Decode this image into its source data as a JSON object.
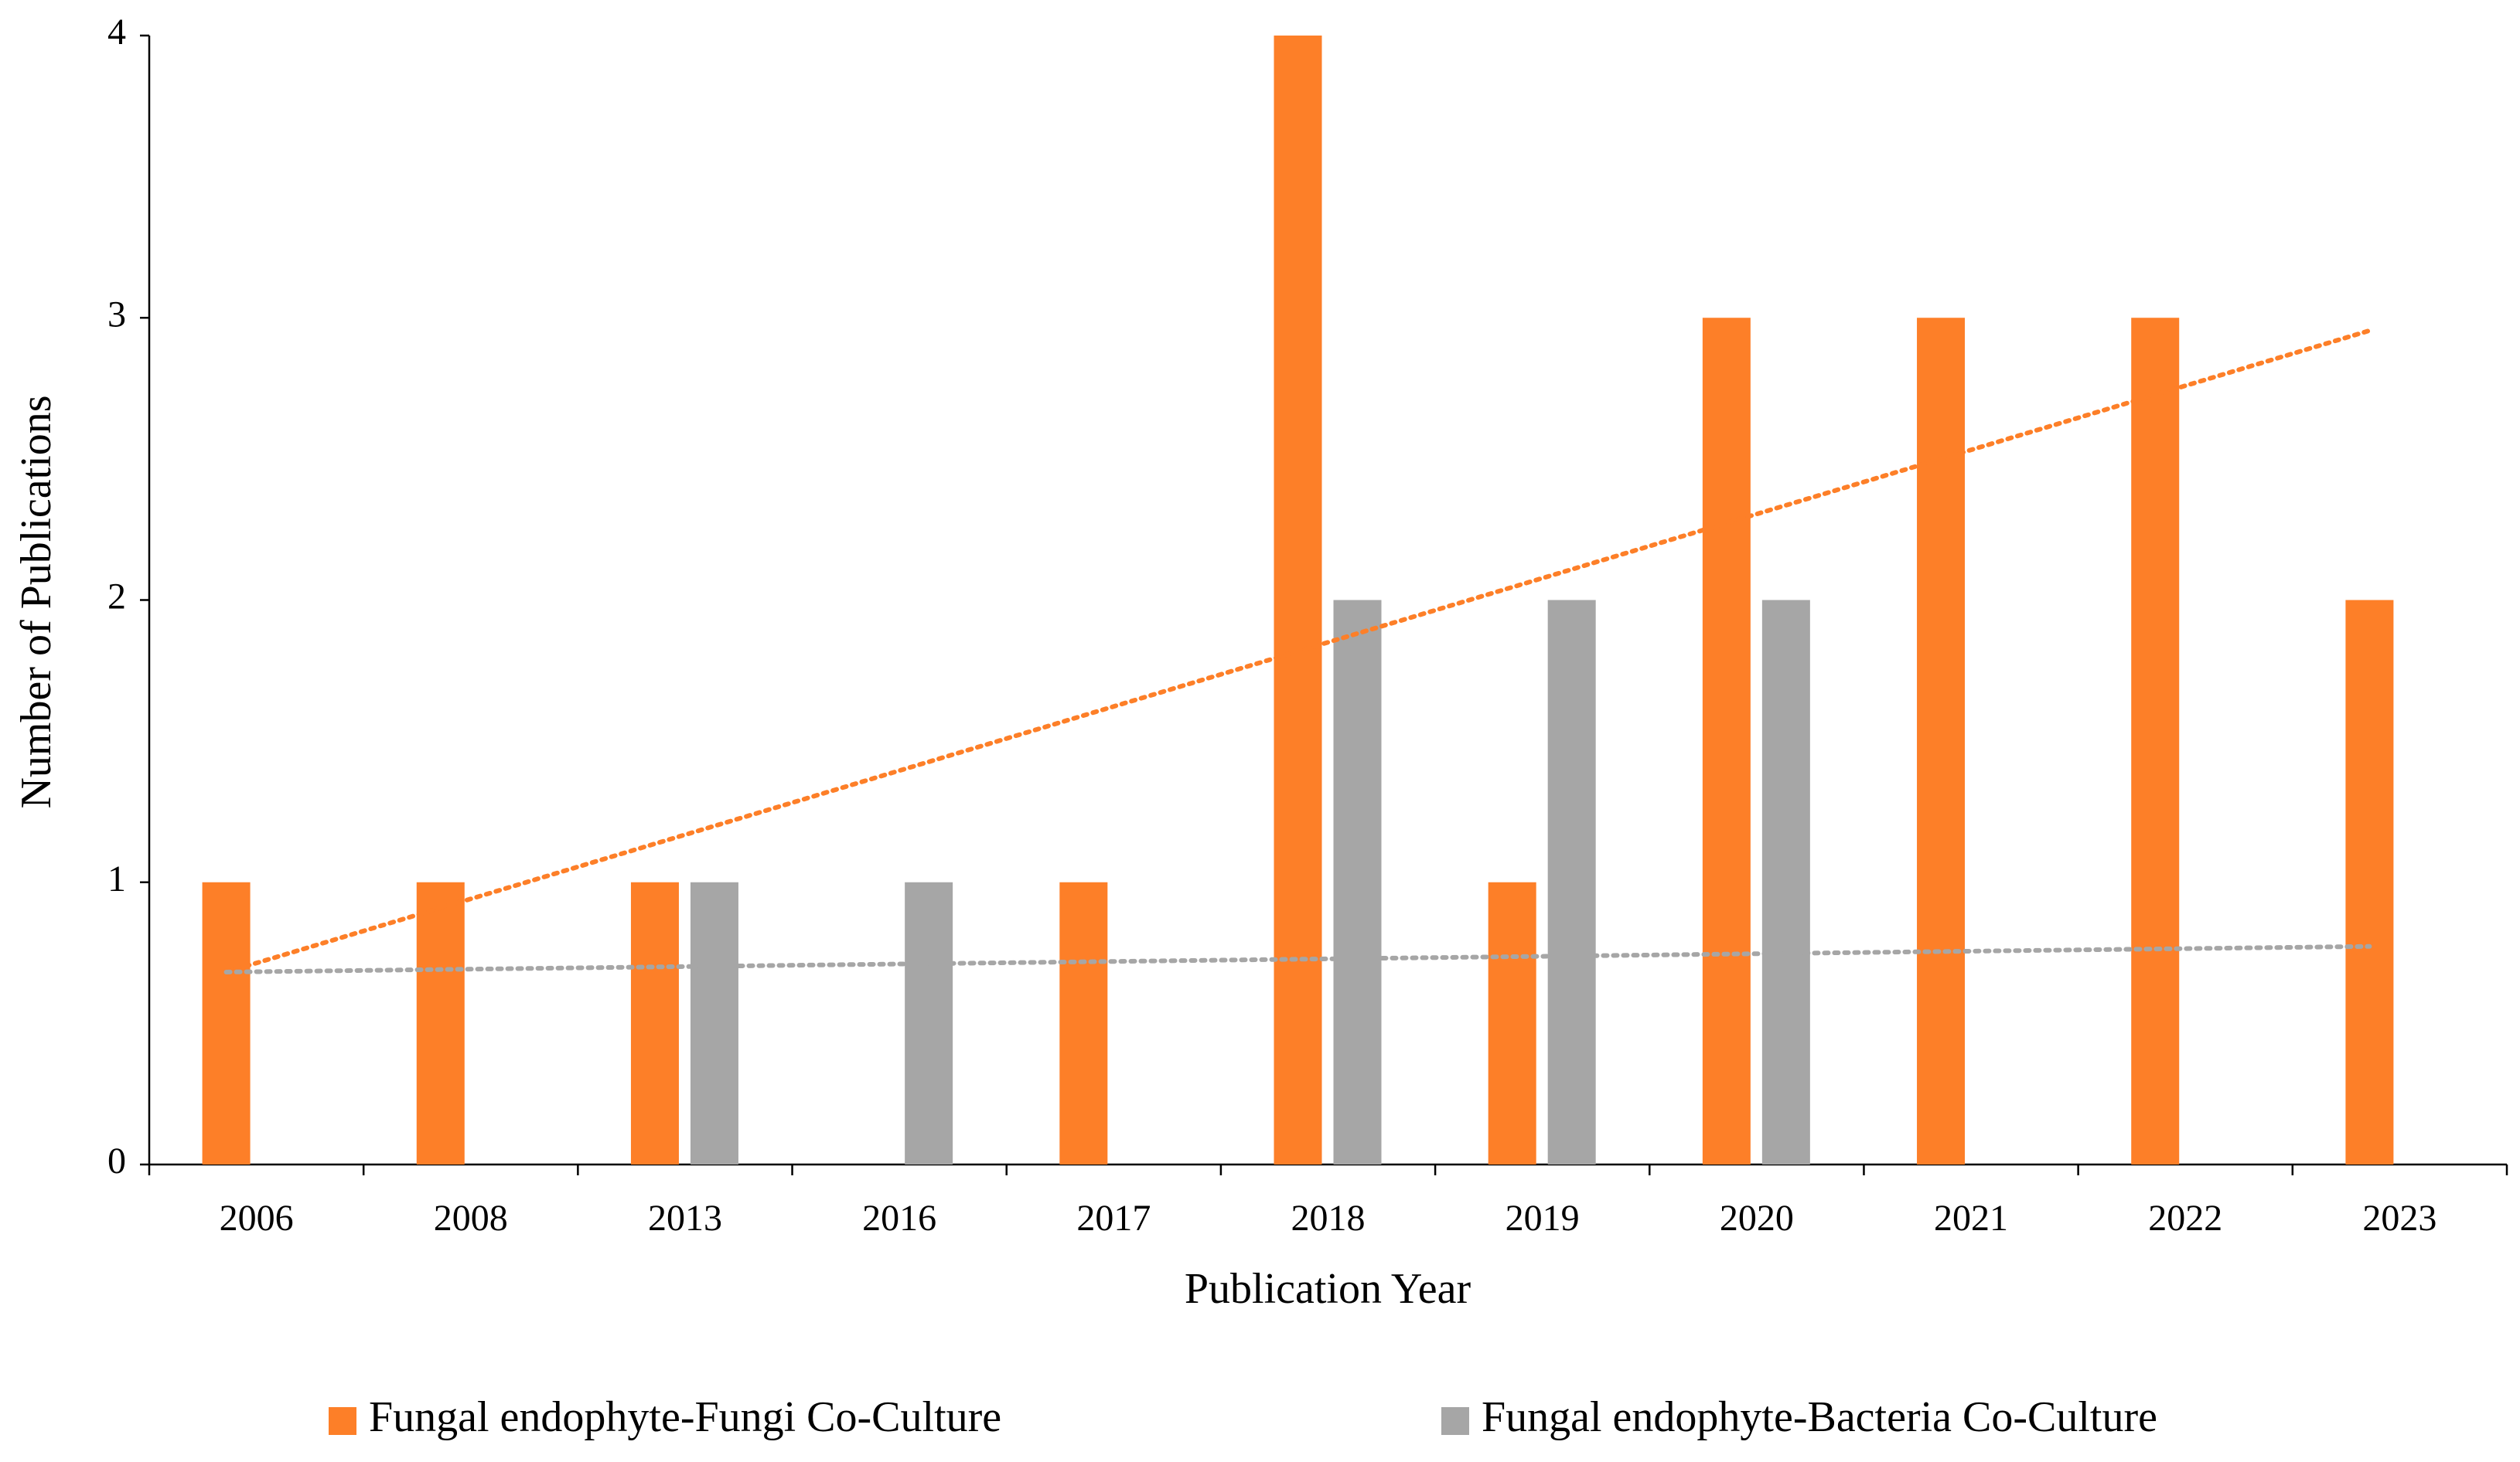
{
  "chart_data": {
    "type": "bar",
    "x_label": "Publication Year",
    "y_label": "Number of Publications",
    "categories": [
      "2006",
      "2008",
      "2013",
      "2016",
      "2017",
      "2018",
      "2019",
      "2020",
      "2021",
      "2022",
      "2023"
    ],
    "series": [
      {
        "name": "Fungal endophyte-Fungi Co-Culture",
        "color": "#fd7f28",
        "values": [
          1,
          1,
          1,
          0,
          1,
          4,
          1,
          3,
          3,
          3,
          2
        ]
      },
      {
        "name": "Fungal endophyte-Bacteria Co-Culture",
        "color": "#a6a6a6",
        "values": [
          0,
          0,
          1,
          1,
          0,
          2,
          2,
          2,
          0,
          0,
          0
        ]
      }
    ],
    "ylim": [
      0,
      4
    ],
    "yticks": [
      0,
      1,
      2,
      3,
      4
    ],
    "grid": false,
    "trendline": "linear",
    "legend": "bottom"
  }
}
